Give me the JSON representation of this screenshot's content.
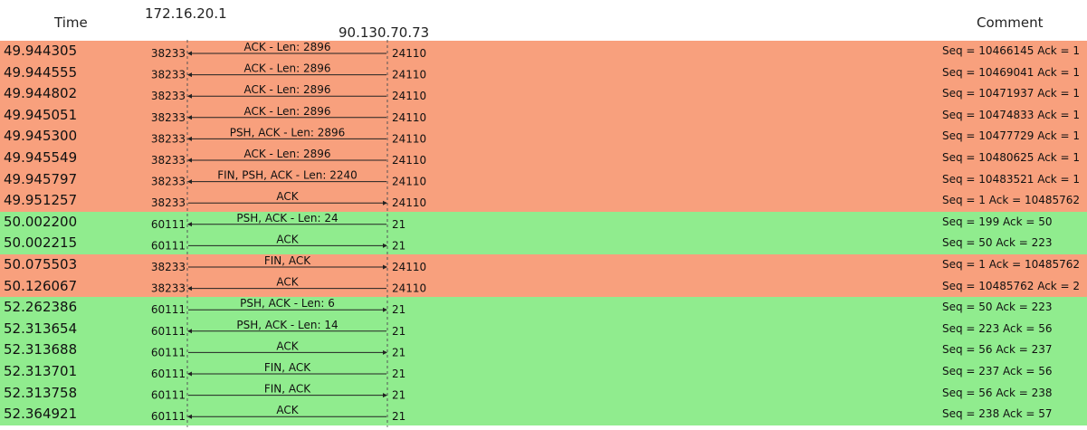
{
  "headers": {
    "time": "Time",
    "host_a": "172.16.20.1",
    "host_b": "90.130.70.73",
    "comment": "Comment"
  },
  "colors": {
    "data_stream": "#f8a07d",
    "control_stream": "#90ec8e",
    "line": "#222222"
  },
  "rows": [
    {
      "time": "49.944305",
      "port_a": "38233",
      "label": "ACK - Len: 2896",
      "port_b": "24110",
      "direction": "left",
      "stream": "data_stream",
      "comment": "Seq = 10466145 Ack = 1"
    },
    {
      "time": "49.944555",
      "port_a": "38233",
      "label": "ACK - Len: 2896",
      "port_b": "24110",
      "direction": "left",
      "stream": "data_stream",
      "comment": "Seq = 10469041 Ack = 1"
    },
    {
      "time": "49.944802",
      "port_a": "38233",
      "label": "ACK - Len: 2896",
      "port_b": "24110",
      "direction": "left",
      "stream": "data_stream",
      "comment": "Seq = 10471937 Ack = 1"
    },
    {
      "time": "49.945051",
      "port_a": "38233",
      "label": "ACK - Len: 2896",
      "port_b": "24110",
      "direction": "left",
      "stream": "data_stream",
      "comment": "Seq = 10474833 Ack = 1"
    },
    {
      "time": "49.945300",
      "port_a": "38233",
      "label": "PSH, ACK - Len: 2896",
      "port_b": "24110",
      "direction": "left",
      "stream": "data_stream",
      "comment": "Seq = 10477729 Ack = 1"
    },
    {
      "time": "49.945549",
      "port_a": "38233",
      "label": "ACK - Len: 2896",
      "port_b": "24110",
      "direction": "left",
      "stream": "data_stream",
      "comment": "Seq = 10480625 Ack = 1"
    },
    {
      "time": "49.945797",
      "port_a": "38233",
      "label": "FIN, PSH, ACK - Len: 2240",
      "port_b": "24110",
      "direction": "left",
      "stream": "data_stream",
      "comment": "Seq = 10483521 Ack = 1"
    },
    {
      "time": "49.951257",
      "port_a": "38233",
      "label": "ACK",
      "port_b": "24110",
      "direction": "right",
      "stream": "data_stream",
      "comment": "Seq = 1 Ack = 10485762"
    },
    {
      "time": "50.002200",
      "port_a": "60111",
      "label": "PSH, ACK - Len: 24",
      "port_b": "21",
      "direction": "left",
      "stream": "control_stream",
      "comment": "Seq = 199 Ack = 50"
    },
    {
      "time": "50.002215",
      "port_a": "60111",
      "label": "ACK",
      "port_b": "21",
      "direction": "right",
      "stream": "control_stream",
      "comment": "Seq = 50 Ack = 223"
    },
    {
      "time": "50.075503",
      "port_a": "38233",
      "label": "FIN, ACK",
      "port_b": "24110",
      "direction": "right",
      "stream": "data_stream",
      "comment": "Seq = 1 Ack = 10485762"
    },
    {
      "time": "50.126067",
      "port_a": "38233",
      "label": "ACK",
      "port_b": "24110",
      "direction": "left",
      "stream": "data_stream",
      "comment": "Seq = 10485762 Ack = 2"
    },
    {
      "time": "52.262386",
      "port_a": "60111",
      "label": "PSH, ACK - Len: 6",
      "port_b": "21",
      "direction": "right",
      "stream": "control_stream",
      "comment": "Seq = 50 Ack = 223"
    },
    {
      "time": "52.313654",
      "port_a": "60111",
      "label": "PSH, ACK - Len: 14",
      "port_b": "21",
      "direction": "left",
      "stream": "control_stream",
      "comment": "Seq = 223 Ack = 56"
    },
    {
      "time": "52.313688",
      "port_a": "60111",
      "label": "ACK",
      "port_b": "21",
      "direction": "right",
      "stream": "control_stream",
      "comment": "Seq = 56 Ack = 237"
    },
    {
      "time": "52.313701",
      "port_a": "60111",
      "label": "FIN, ACK",
      "port_b": "21",
      "direction": "left",
      "stream": "control_stream",
      "comment": "Seq = 237 Ack = 56"
    },
    {
      "time": "52.313758",
      "port_a": "60111",
      "label": "FIN, ACK",
      "port_b": "21",
      "direction": "right",
      "stream": "control_stream",
      "comment": "Seq = 56 Ack = 238"
    },
    {
      "time": "52.364921",
      "port_a": "60111",
      "label": "ACK",
      "port_b": "21",
      "direction": "left",
      "stream": "control_stream",
      "comment": "Seq = 238 Ack = 57"
    }
  ]
}
